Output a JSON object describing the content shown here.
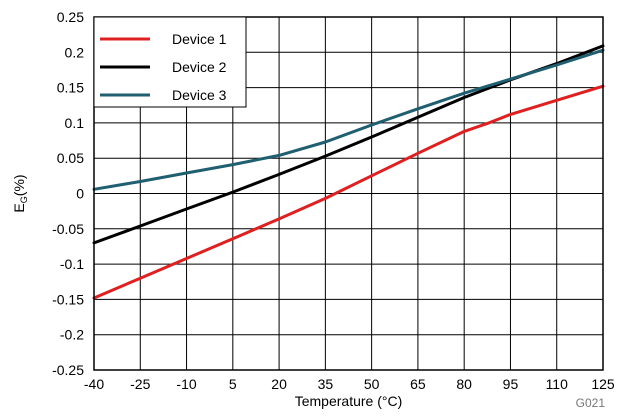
{
  "chart_data": {
    "type": "line",
    "xlabel": "Temperature (°C)",
    "ylabel_main": "E",
    "ylabel_sub": "G",
    "ylabel_suffix": "(%)",
    "figure_code": "G021",
    "xlim": [
      -40,
      125
    ],
    "ylim": [
      -0.25,
      0.25
    ],
    "x_ticks": [
      -40,
      -25,
      -10,
      5,
      20,
      35,
      50,
      65,
      80,
      95,
      110,
      125
    ],
    "x_tick_labels": [
      "-40",
      "-25",
      "-10",
      "5",
      "20",
      "35",
      "50",
      "65",
      "80",
      "95",
      "110",
      "125"
    ],
    "y_ticks": [
      -0.25,
      -0.2,
      -0.15,
      -0.1,
      -0.05,
      0,
      0.05,
      0.1,
      0.15,
      0.2,
      0.25
    ],
    "y_tick_labels": [
      "-0.25",
      "-0.2",
      "-0.15",
      "-0.1",
      "-0.05",
      "0",
      "0.05",
      "0.1",
      "0.15",
      "0.2",
      "0.25"
    ],
    "grid": true,
    "legend_position": "top-left",
    "series": [
      {
        "name": "Device 1",
        "color": "#e02020",
        "x": [
          -40,
          -25,
          -10,
          5,
          20,
          35,
          50,
          65,
          80,
          88,
          95,
          110,
          125
        ],
        "y": [
          -0.148,
          -0.12,
          -0.092,
          -0.064,
          -0.036,
          -0.007,
          0.025,
          0.057,
          0.088,
          0.1,
          0.112,
          0.132,
          0.152
        ]
      },
      {
        "name": "Device 2",
        "color": "#000000",
        "x": [
          -40,
          -25,
          -10,
          5,
          20,
          35,
          50,
          65,
          80,
          95,
          110,
          125
        ],
        "y": [
          -0.07,
          -0.046,
          -0.022,
          0.002,
          0.027,
          0.053,
          0.08,
          0.108,
          0.136,
          0.161,
          0.184,
          0.209
        ]
      },
      {
        "name": "Device 3",
        "color": "#1f5f70",
        "x": [
          -40,
          -25,
          -10,
          5,
          20,
          35,
          50,
          65,
          80,
          95,
          110,
          125
        ],
        "y": [
          0.006,
          0.017,
          0.029,
          0.041,
          0.054,
          0.073,
          0.097,
          0.12,
          0.142,
          0.162,
          0.182,
          0.203
        ]
      }
    ]
  }
}
